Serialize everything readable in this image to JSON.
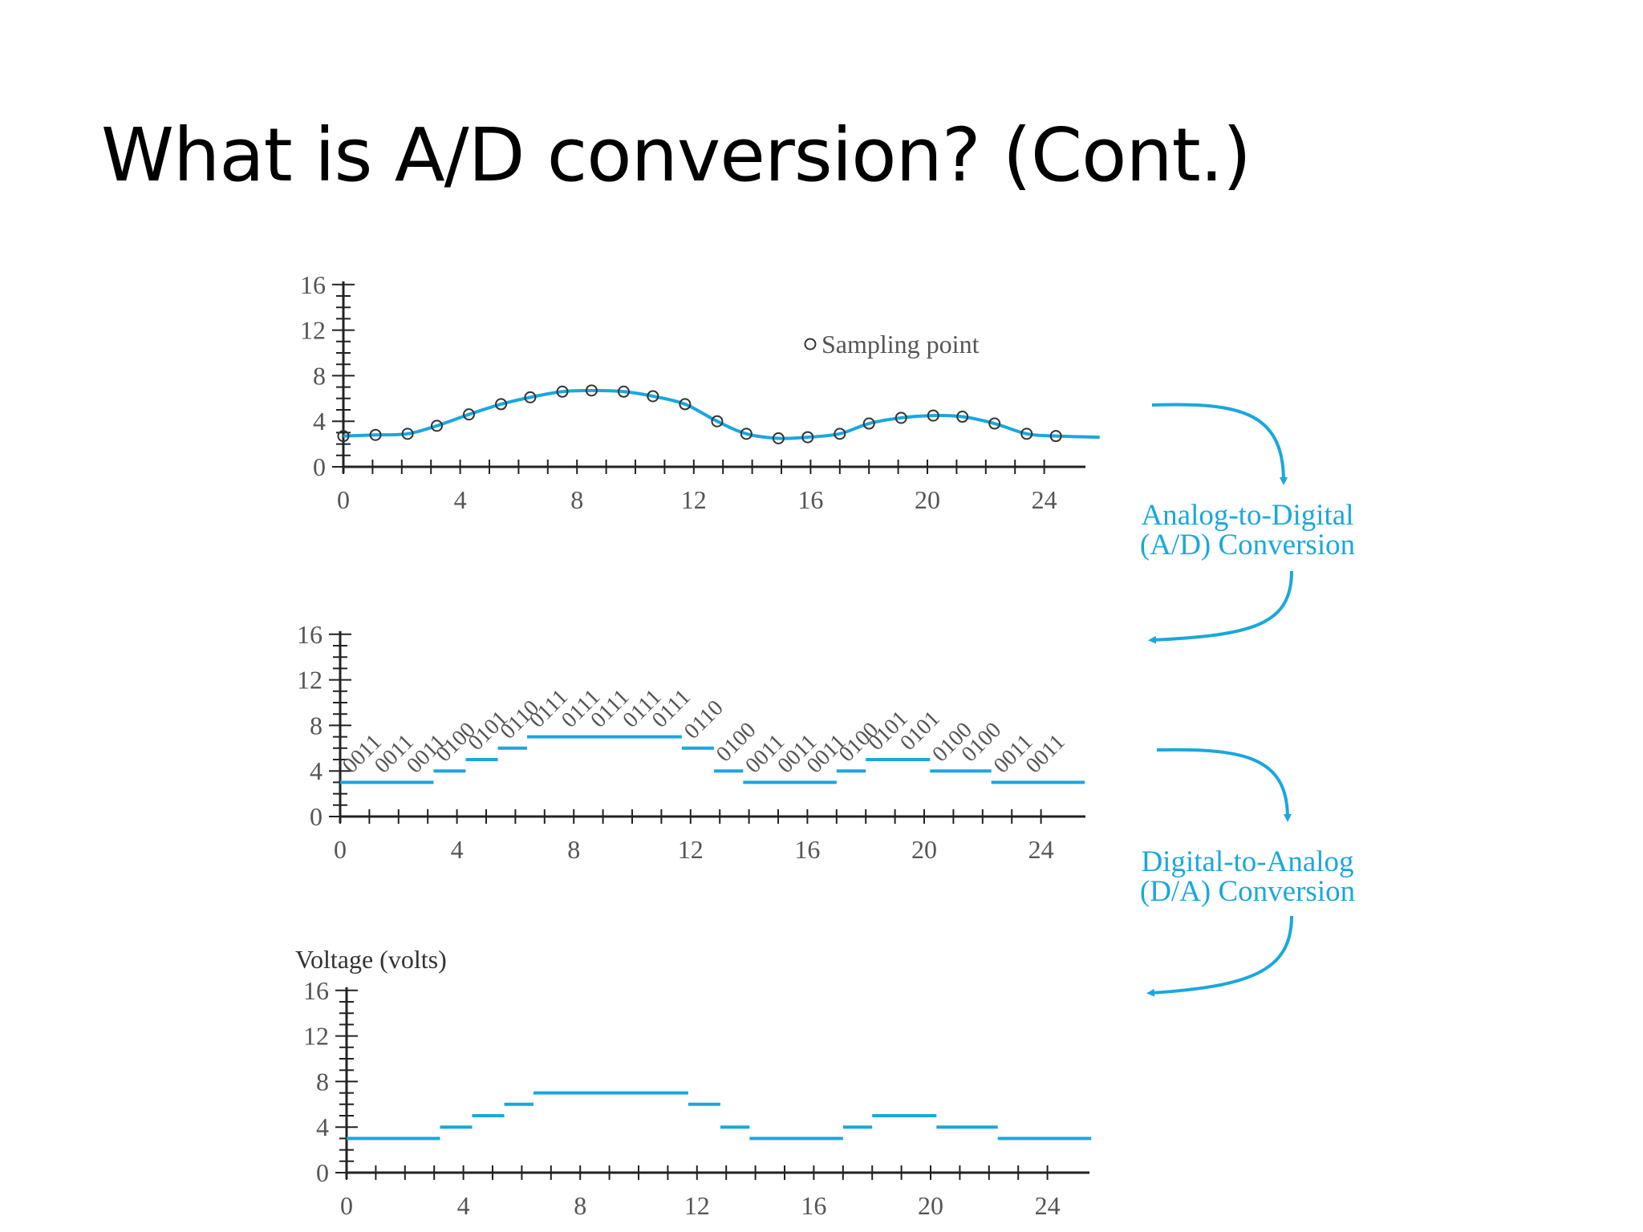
{
  "slide": {
    "title": "What is A/D conversion? (Cont.)"
  },
  "colors": {
    "accent": "#1aa7de",
    "axis": "#222222",
    "text": "#555555"
  },
  "labels": {
    "ad_line1": "Analog-to-Digital",
    "ad_line2": "(A/D) Conversion",
    "da_line1": "Digital-to-Analog",
    "da_line2": "(D/A) Conversion"
  },
  "chart_data": [
    {
      "type": "line",
      "title": "",
      "xlabel": "",
      "ylabel": "",
      "xlim": [
        0,
        25
      ],
      "ylim": [
        0,
        16
      ],
      "x_ticks": [
        "0",
        "4",
        "8",
        "12",
        "16",
        "20",
        "24"
      ],
      "y_ticks": [
        "16",
        "12",
        "8",
        "4",
        "0"
      ],
      "legend": {
        "label": "Sampling point",
        "placement": "top-right"
      },
      "series": [
        {
          "x": [
            0,
            1.1,
            2.2,
            3.2,
            4.3,
            5.4,
            6.4,
            7.5,
            8.5,
            9.6,
            10.6,
            11.7,
            12.8,
            13.8,
            14.9,
            15.9,
            17,
            18,
            19.1,
            20.2,
            21.2,
            22.3,
            23.4,
            24.4
          ],
          "y": [
            2.7,
            2.8,
            2.9,
            3.6,
            4.6,
            5.5,
            6.1,
            6.6,
            6.7,
            6.6,
            6.2,
            5.5,
            4,
            2.9,
            2.5,
            2.6,
            2.9,
            3.8,
            4.3,
            4.5,
            4.4,
            3.8,
            2.9,
            2.7
          ]
        }
      ]
    },
    {
      "type": "step",
      "title": "",
      "xlabel": "",
      "ylabel": "",
      "xlim": [
        0,
        25
      ],
      "ylim": [
        0,
        16
      ],
      "x_ticks": [
        "0",
        "4",
        "8",
        "12",
        "16",
        "20",
        "24"
      ],
      "y_ticks": [
        "16",
        "12",
        "8",
        "4",
        "0"
      ],
      "segments": [
        {
          "x0": 0,
          "x1": 3.2,
          "y": 3
        },
        {
          "x0": 3.2,
          "x1": 4.3,
          "y": 4
        },
        {
          "x0": 4.3,
          "x1": 5.4,
          "y": 5
        },
        {
          "x0": 5.4,
          "x1": 6.4,
          "y": 6
        },
        {
          "x0": 6.4,
          "x1": 11.7,
          "y": 7
        },
        {
          "x0": 11.7,
          "x1": 12.8,
          "y": 6
        },
        {
          "x0": 12.8,
          "x1": 13.8,
          "y": 4
        },
        {
          "x0": 13.8,
          "x1": 17,
          "y": 3
        },
        {
          "x0": 17,
          "x1": 18,
          "y": 4
        },
        {
          "x0": 18,
          "x1": 20.2,
          "y": 5
        },
        {
          "x0": 20.2,
          "x1": 22.3,
          "y": 4
        },
        {
          "x0": 22.3,
          "x1": 25.5,
          "y": 3
        }
      ],
      "codes": [
        {
          "x": 0,
          "code": "0011"
        },
        {
          "x": 1.1,
          "code": "0011"
        },
        {
          "x": 2.2,
          "code": "0011"
        },
        {
          "x": 3.2,
          "code": "0100"
        },
        {
          "x": 4.3,
          "code": "0101"
        },
        {
          "x": 5.4,
          "code": "0110"
        },
        {
          "x": 6.4,
          "code": "0111"
        },
        {
          "x": 7.5,
          "code": "0111"
        },
        {
          "x": 8.5,
          "code": "0111"
        },
        {
          "x": 9.6,
          "code": "0111"
        },
        {
          "x": 10.6,
          "code": "0111"
        },
        {
          "x": 11.7,
          "code": "0110"
        },
        {
          "x": 12.8,
          "code": "0100"
        },
        {
          "x": 13.8,
          "code": "0011"
        },
        {
          "x": 14.9,
          "code": "0011"
        },
        {
          "x": 15.9,
          "code": "0011"
        },
        {
          "x": 17,
          "code": "0100"
        },
        {
          "x": 18,
          "code": "0101"
        },
        {
          "x": 19.1,
          "code": "0101"
        },
        {
          "x": 20.2,
          "code": "0100"
        },
        {
          "x": 21.2,
          "code": "0100"
        },
        {
          "x": 22.3,
          "code": "0011"
        },
        {
          "x": 23.4,
          "code": "0011"
        }
      ]
    },
    {
      "type": "step",
      "title": "",
      "xlabel": "",
      "ylabel": "Voltage (volts)",
      "xlim": [
        0,
        25
      ],
      "ylim": [
        0,
        16
      ],
      "x_ticks": [
        "0",
        "4",
        "8",
        "12",
        "16",
        "20",
        "24"
      ],
      "y_ticks": [
        "16",
        "12",
        "8",
        "4",
        "0"
      ],
      "segments": [
        {
          "x0": 0,
          "x1": 3.2,
          "y": 3
        },
        {
          "x0": 3.2,
          "x1": 4.3,
          "y": 4
        },
        {
          "x0": 4.3,
          "x1": 5.4,
          "y": 5
        },
        {
          "x0": 5.4,
          "x1": 6.4,
          "y": 6
        },
        {
          "x0": 6.4,
          "x1": 11.7,
          "y": 7
        },
        {
          "x0": 11.7,
          "x1": 12.8,
          "y": 6
        },
        {
          "x0": 12.8,
          "x1": 13.8,
          "y": 4
        },
        {
          "x0": 13.8,
          "x1": 17,
          "y": 3
        },
        {
          "x0": 17,
          "x1": 18,
          "y": 4
        },
        {
          "x0": 18,
          "x1": 20.2,
          "y": 5
        },
        {
          "x0": 20.2,
          "x1": 22.3,
          "y": 4
        },
        {
          "x0": 22.3,
          "x1": 25.5,
          "y": 3
        }
      ]
    }
  ]
}
